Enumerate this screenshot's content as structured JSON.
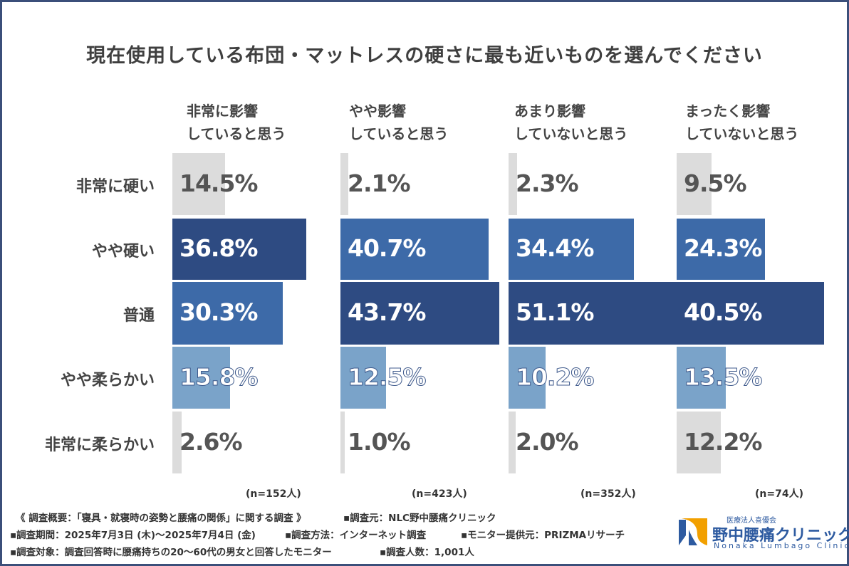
{
  "title": "現在使用している布団・マットレスの硬さに最も近いものを選んでください",
  "chart_data": {
    "type": "bar",
    "orientation": "horizontal",
    "categories": [
      "非常に硬い",
      "やや硬い",
      "普通",
      "やや柔らかい",
      "非常に柔らかい"
    ],
    "series": [
      {
        "name_lines": [
          "非常に影響",
          "していると思う"
        ],
        "n": "(n=152人)",
        "values": [
          14.5,
          36.8,
          30.3,
          15.8,
          2.6
        ]
      },
      {
        "name_lines": [
          "やや影響",
          "していると思う"
        ],
        "n": "(n=423人)",
        "values": [
          2.1,
          40.7,
          43.7,
          12.5,
          1.0
        ]
      },
      {
        "name_lines": [
          "あまり影響",
          "していないと思う"
        ],
        "n": "(n=352人)",
        "values": [
          2.3,
          34.4,
          51.1,
          10.2,
          2.0
        ]
      },
      {
        "name_lines": [
          "まったく影響",
          "していないと思う"
        ],
        "n": "(n=74人)",
        "values": [
          9.5,
          24.3,
          40.5,
          13.5,
          12.2
        ]
      }
    ],
    "unit": "%",
    "colors": {
      "rank1": "#2e4b82",
      "rank2": "#3d6aa8",
      "rank3": "#7aa3c9",
      "rest": "#dcdcdc"
    }
  },
  "footer": {
    "summary": "《 調査概要：「寝具・就寝時の姿勢と腰痛の関係」に関する調査 》",
    "source": "▪調査元：NLC野中腰痛クリニック",
    "period": "▪調査期間：2025年7月3日 (木)～2025年7月4日 (金)",
    "method": "▪調査方法：インターネット調査",
    "monitor": "▪モニター提供元：PRIZMAリサーチ",
    "target": "▪調査対象：調査回答時に腰痛持ちの20～60代の男女と回答したモニター",
    "count": "▪調査人数：1,001人"
  },
  "logo": {
    "small": "医療法人喜優会",
    "name": "野中腰痛クリニック",
    "en": "Nonaka Lumbago Clinic",
    "icon": "nlc-logo-mark"
  }
}
